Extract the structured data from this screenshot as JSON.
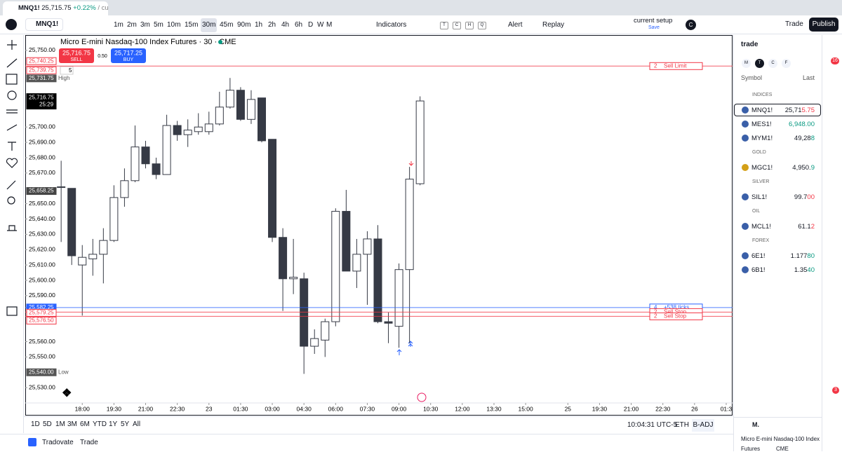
{
  "browser": {
    "tab_symbol": "MNQ1!",
    "tab_price": "25,715.75",
    "tab_change": "+0.22%",
    "tab_rest": "/ cur"
  },
  "toolbar": {
    "symbol": "MNQ1!",
    "intervals": [
      "1m",
      "2m",
      "3m",
      "5m",
      "10m",
      "15m",
      "30m",
      "45m",
      "90m",
      "1h",
      "2h",
      "4h",
      "6h",
      "D",
      "W",
      "M"
    ],
    "active_interval": "30m",
    "indicators": "Indicators",
    "letters": [
      "T",
      "C",
      "H",
      "Q"
    ],
    "alert": "Alert",
    "replay": "Replay",
    "layout": "current setup",
    "save": "Save",
    "layout_badge": "C",
    "trade": "Trade",
    "publish": "Publish"
  },
  "chart_data": {
    "type": "candlestick",
    "title": "Micro E-mini Nasdaq-100 Index Futures · 30 · CME",
    "sell_price": "25,716.75",
    "sell": "SELL",
    "spread": "0.50",
    "buy_price": "25,717.25",
    "buy": "BUY",
    "quantity": "5",
    "series": {
      "up_color": "#ffffff",
      "down_color": "#363a45",
      "open": [
        25661,
        25660,
        25610,
        25614,
        25617,
        25626,
        25654,
        25665,
        25687,
        25676,
        25669,
        25701,
        25695,
        25697,
        25697,
        25702,
        25713,
        25724,
        25705,
        25719,
        25692,
        25628,
        25601,
        25601,
        25557,
        25561,
        25573,
        25645,
        25606,
        25617,
        25627,
        25573,
        25570,
        25607,
        25663
      ],
      "high": [
        25678,
        25660,
        25623,
        25627,
        25634,
        25662,
        25673,
        25701,
        25691,
        25680,
        25708,
        25704,
        25705,
        25709,
        25710,
        25723,
        25732,
        25726,
        25724,
        25719,
        25692,
        25634,
        25627,
        25605,
        25568,
        25575,
        25647,
        25659,
        25627,
        25632,
        25636,
        25579,
        25611,
        25674,
        25720
      ],
      "low": [
        25625,
        25610,
        25577,
        25603,
        25598,
        25625,
        25648,
        25664,
        25673,
        25666,
        25669,
        25691,
        25687,
        25695,
        25695,
        25701,
        25712,
        25704,
        25702,
        25690,
        25625,
        25580,
        25591,
        25539,
        25552,
        25550,
        25570,
        25606,
        25595,
        25584,
        25572,
        25559,
        25556,
        25559,
        25662
      ],
      "close": [
        25661,
        25616,
        25615,
        25617,
        25626,
        25654,
        25665,
        25687,
        25676,
        25669,
        25701,
        25695,
        25698,
        25700,
        25702,
        25713,
        25724,
        25705,
        25718,
        25691,
        25628,
        25601,
        25602,
        25557,
        25562,
        25573,
        25645,
        25606,
        25617,
        25627,
        25573,
        25572,
        25607,
        25666,
        25717
      ]
    },
    "xlim": [
      -3.4,
      63.6
    ],
    "ylim": [
      25520,
      25760
    ],
    "yticks": [
      {
        "value": 25530,
        "label": "25,530.00"
      },
      {
        "value": 25550,
        "label": "25,550.00"
      },
      {
        "value": 25560,
        "label": "25,560.00"
      },
      {
        "value": 25590,
        "label": "25,590.00"
      },
      {
        "value": 25600,
        "label": "25,600.00"
      },
      {
        "value": 25610,
        "label": "25,610.00"
      },
      {
        "value": 25620,
        "label": "25,620.00"
      },
      {
        "value": 25630,
        "label": "25,630.00"
      },
      {
        "value": 25640,
        "label": "25,640.00"
      },
      {
        "value": 25650,
        "label": "25,650.00"
      },
      {
        "value": 25670,
        "label": "25,670.00"
      },
      {
        "value": 25680,
        "label": "25,680.00"
      },
      {
        "value": 25690,
        "label": "25,690.00"
      },
      {
        "value": 25700,
        "label": "25,700.00"
      },
      {
        "value": 25750,
        "label": "25,750.00"
      }
    ],
    "xticks": [
      {
        "value": 2,
        "label": "18:00"
      },
      {
        "value": 5,
        "label": "19:30"
      },
      {
        "value": 8,
        "label": "21:00"
      },
      {
        "value": 11,
        "label": "22:30"
      },
      {
        "value": 14,
        "label": "23"
      },
      {
        "value": 17,
        "label": "01:30"
      },
      {
        "value": 20,
        "label": "03:00"
      },
      {
        "value": 23,
        "label": "04:30"
      },
      {
        "value": 26,
        "label": "06:00"
      },
      {
        "value": 29,
        "label": "07:30"
      },
      {
        "value": 32,
        "label": "09:00"
      },
      {
        "value": 35,
        "label": "10:30"
      },
      {
        "value": 38,
        "label": "12:00"
      },
      {
        "value": 41,
        "label": "13:30"
      },
      {
        "value": 44,
        "label": "15:00"
      },
      {
        "value": 48,
        "label": "25"
      },
      {
        "value": 51,
        "label": "19:30"
      },
      {
        "value": 54,
        "label": "21:00"
      },
      {
        "value": 57,
        "label": "22:30"
      },
      {
        "value": 60,
        "label": "26"
      },
      {
        "value": 63,
        "label": "01:3"
      }
    ],
    "price_labels": [
      {
        "value": 25740.25,
        "label": "25,740.25",
        "color": "#f23645",
        "boxed": true
      },
      {
        "value": 25739.75,
        "label": "25,739.75",
        "color": "#f23645",
        "boxed": true
      },
      {
        "value": 25731.75,
        "label": "25,731.75",
        "note": "High",
        "color": "#555"
      },
      {
        "value": 25716.75,
        "label": "25,716.75",
        "note": "25:29",
        "color": "#000"
      },
      {
        "value": 25658.25,
        "label": "25,658.25",
        "color": "#444"
      },
      {
        "value": 25582.25,
        "label": "25,582.25",
        "color": "#2962ff"
      },
      {
        "value": 25579.25,
        "label": "25,579.25",
        "color": "#f23645",
        "boxed": true
      },
      {
        "value": 25576.5,
        "label": "25,576.50",
        "color": "#f23645",
        "boxed": true
      },
      {
        "value": 25540,
        "label": "25,540.00",
        "note": "Low",
        "color": "#555"
      }
    ],
    "orders": [
      {
        "value": 25739.75,
        "qty": "2",
        "label": "Sell Limit",
        "color": "#f23645"
      },
      {
        "value": 25582.25,
        "qty": "4",
        "label": "+538 ticks",
        "color": "#2962ff"
      },
      {
        "value": 25579.25,
        "qty": "2",
        "label": "Sell Stop",
        "color": "#f23645"
      },
      {
        "value": 25576.5,
        "qty": "2",
        "label": "Sell Stop",
        "color": "#f23645"
      }
    ]
  },
  "watchlist": {
    "name": "trade",
    "tabs": [
      "M",
      "T",
      "C",
      "F"
    ],
    "symbol_header": "Symbol",
    "last_header": "Last",
    "groups": [
      {
        "name": "INDICES",
        "rows": [
          {
            "symbol": "MNQ1!",
            "head": "25,71",
            "tail": "5.75",
            "tail_color": "#f23645"
          },
          {
            "symbol": "MES1!",
            "head": "",
            "tail": "6,948.00",
            "tail_color": "#089981"
          },
          {
            "symbol": "MYM1!",
            "head": "49,28",
            "tail": "8",
            "tail_color": "#089981"
          }
        ]
      },
      {
        "name": "GOLD",
        "rows": [
          {
            "symbol": "MGC1!",
            "head": "4,950.",
            "tail": "9",
            "tail_color": "#089981"
          }
        ]
      },
      {
        "name": "SILVER",
        "rows": [
          {
            "symbol": "SIL1!",
            "head": "99.7",
            "tail": "00",
            "tail_color": "#f23645"
          }
        ]
      },
      {
        "name": "OIL",
        "rows": [
          {
            "symbol": "MCL1!",
            "head": "61.1",
            "tail": "2",
            "tail_color": "#f23645"
          }
        ]
      },
      {
        "name": "FOREX",
        "rows": [
          {
            "symbol": "6E1!",
            "head": "1.177",
            "tail": "80",
            "tail_color": "#089981"
          },
          {
            "symbol": "6B1!",
            "head": "1.35",
            "tail": "40",
            "tail_color": "#089981"
          }
        ]
      }
    ],
    "detail_symbol": "M.",
    "detail_name": "Micro E-mini Nasdaq-100 Index",
    "detail_line": "Futures",
    "detail_exchange": "CME",
    "alerts_badge": "16",
    "notif_badge": "3"
  },
  "bottom": {
    "ranges": [
      "1D",
      "5D",
      "1M",
      "3M",
      "6M",
      "YTD",
      "1Y",
      "5Y",
      "All"
    ],
    "clock": "10:04:31 UTC-5",
    "session": "ETH",
    "adj": "B-ADJ",
    "broker": "Tradovate",
    "trade": "Trade"
  }
}
